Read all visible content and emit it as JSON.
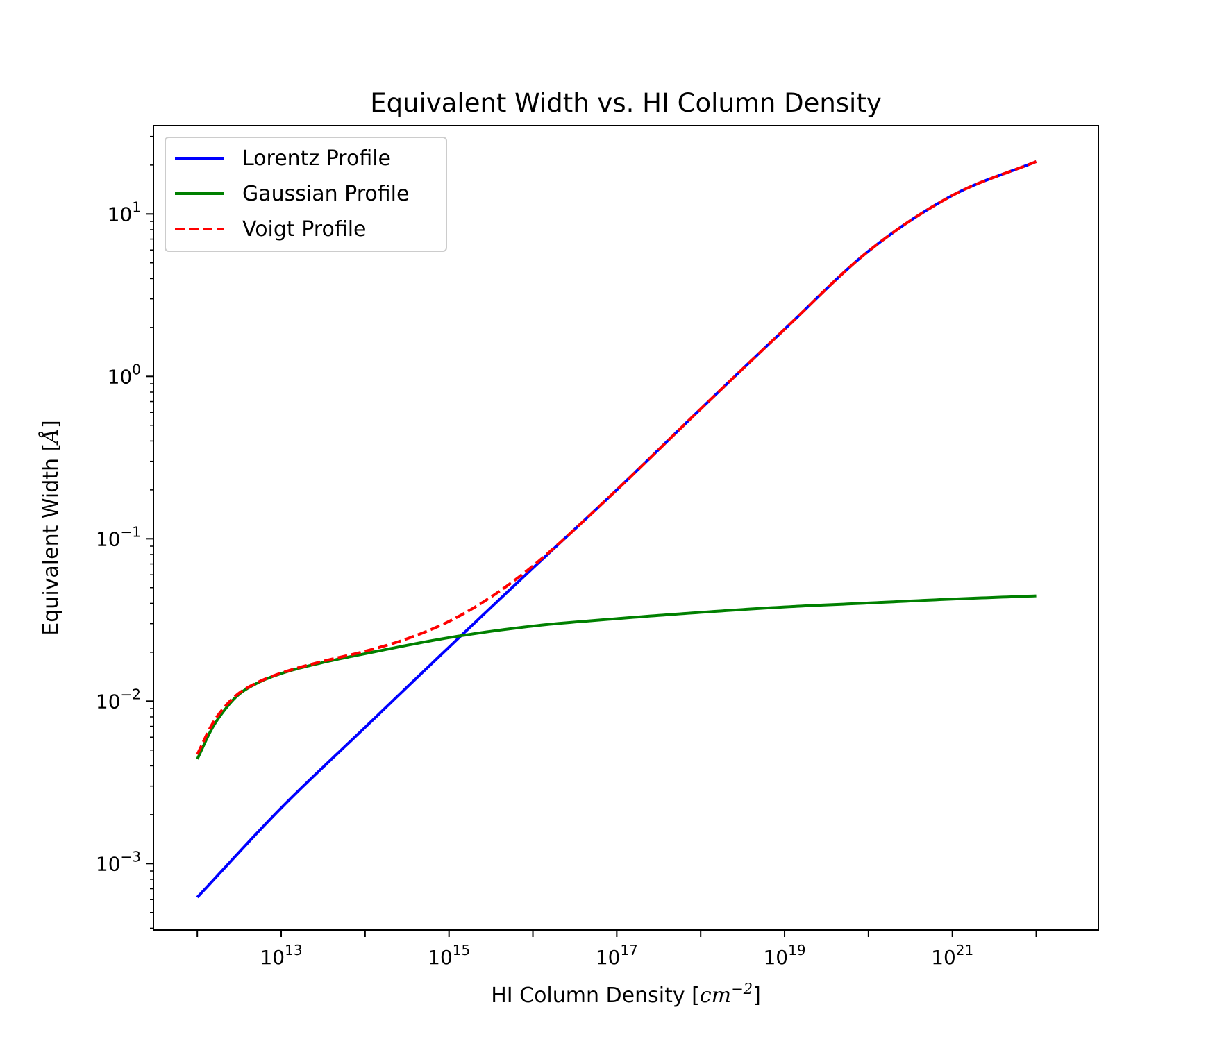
{
  "chart_data": {
    "type": "line",
    "title": "Equivalent Width vs. HI Column Density",
    "xlabel": "HI Column Density [",
    "xlabel_math": "cm",
    "xlabel_exp": "−2",
    "xlabel_close": "]",
    "ylabel": "Equivalent Width [",
    "ylabel_math": "Å",
    "ylabel_close": "]",
    "xscale": "log",
    "yscale": "log",
    "xlim": [
      300000000000.0,
      5.5e+22
    ],
    "ylim": [
      0.00039,
      35
    ],
    "grid": false,
    "legend_position": "top-left",
    "x_ticks": [
      {
        "value": 10000000000000.0,
        "base": "10",
        "exp": "13"
      },
      {
        "value": 1000000000000000.0,
        "base": "10",
        "exp": "15"
      },
      {
        "value": 1e+17,
        "base": "10",
        "exp": "17"
      },
      {
        "value": 1e+19,
        "base": "10",
        "exp": "19"
      },
      {
        "value": 1e+21,
        "base": "10",
        "exp": "21"
      }
    ],
    "y_ticks": [
      {
        "value": 0.001,
        "base": "10",
        "exp": "−3"
      },
      {
        "value": 0.01,
        "base": "10",
        "exp": "−2"
      },
      {
        "value": 0.1,
        "base": "10",
        "exp": "−1"
      },
      {
        "value": 1,
        "base": "10",
        "exp": "0"
      },
      {
        "value": 10,
        "base": "10",
        "exp": "1"
      }
    ],
    "series": [
      {
        "name": "Lorentz Profile",
        "color": "#0000ff",
        "style": "solid",
        "x": [
          1000000000000.0,
          10000000000000.0,
          100000000000000.0,
          1000000000000000.0,
          1e+16,
          1e+17,
          1e+18,
          1e+19,
          1e+20,
          1e+21,
          1e+22
        ],
        "y": [
          0.00062,
          0.0022,
          0.0069,
          0.0215,
          0.066,
          0.2,
          0.63,
          1.95,
          5.9,
          13.0,
          21.0
        ]
      },
      {
        "name": "Gaussian Profile",
        "color": "#008000",
        "style": "solid",
        "x": [
          1000000000000.0,
          1500000000000.0,
          2000000000000.0,
          3000000000000.0,
          5000000000000.0,
          10000000000000.0,
          30000000000000.0,
          100000000000000.0,
          1000000000000000.0,
          1e+16,
          1e+17,
          1e+18,
          1e+19,
          1e+20,
          1e+21,
          1e+22
        ],
        "y": [
          0.0044,
          0.0068,
          0.0085,
          0.0108,
          0.0128,
          0.0148,
          0.0172,
          0.0196,
          0.0246,
          0.029,
          0.0322,
          0.0352,
          0.038,
          0.0402,
          0.0425,
          0.0445
        ]
      },
      {
        "name": "Voigt Profile",
        "color": "#ff0000",
        "style": "dashed",
        "x": [
          1000000000000.0,
          1500000000000.0,
          2000000000000.0,
          3000000000000.0,
          5000000000000.0,
          10000000000000.0,
          30000000000000.0,
          100000000000000.0,
          300000000000000.0,
          1000000000000000.0,
          3000000000000000.0,
          1e+16,
          1e+17,
          1e+18,
          1e+19,
          1e+20,
          1e+21,
          1e+22
        ],
        "y": [
          0.0047,
          0.0072,
          0.0089,
          0.011,
          0.0129,
          0.0149,
          0.0175,
          0.0203,
          0.024,
          0.031,
          0.043,
          0.068,
          0.2,
          0.63,
          1.95,
          5.9,
          13.0,
          21.0
        ]
      }
    ]
  }
}
